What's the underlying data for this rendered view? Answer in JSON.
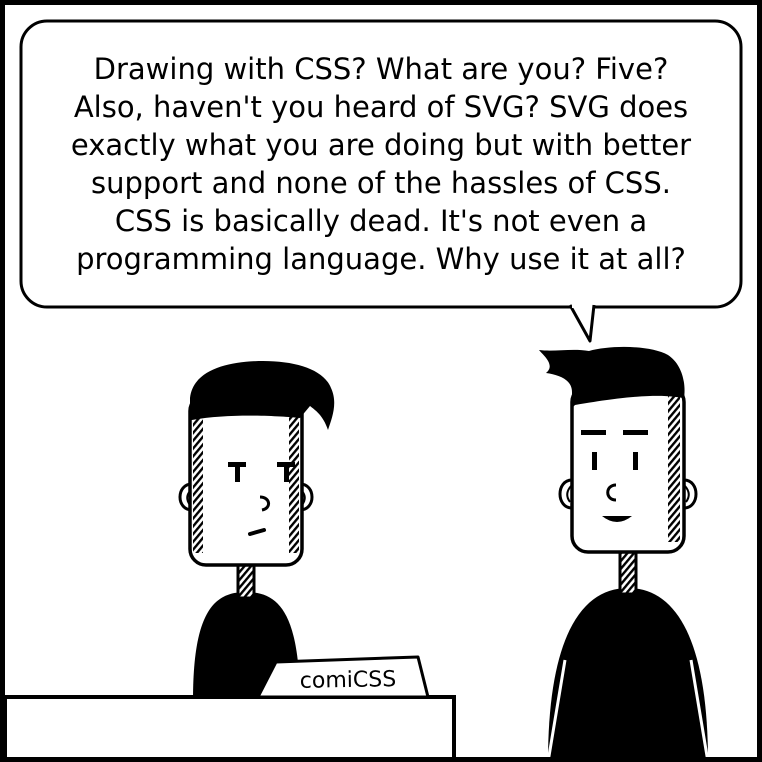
{
  "speech_bubble": {
    "lines": [
      "Drawing with CSS? What are you? Five?",
      "Also, haven't you heard of SVG? SVG does",
      "exactly what you are doing but with better",
      "support and none of the hassles of CSS.",
      "CSS is basically dead. It's not even a",
      "programming language. Why use it at all?"
    ]
  },
  "desk_sign": {
    "text": "comiCSS"
  },
  "colors": {
    "ink": "#000000",
    "paper": "#ffffff"
  }
}
